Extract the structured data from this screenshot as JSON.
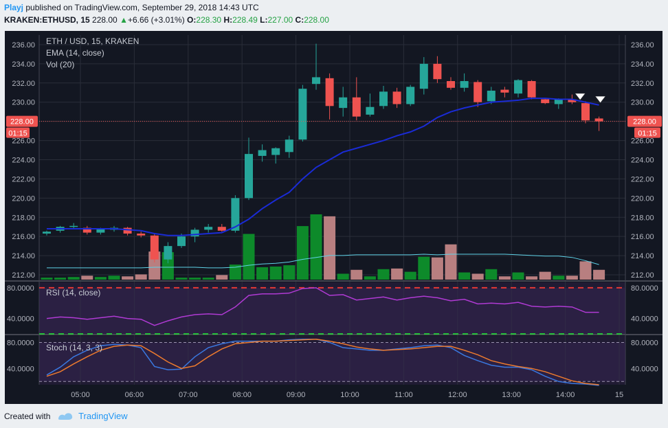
{
  "header": {
    "author": "Playj",
    "published": "published on TradingView.com, September 29, 2018 14:43 UTC",
    "symbol": "KRAKEN:ETHUSD, 15",
    "price": "228.00",
    "change": "+6.66 (+3.01%)",
    "o_label": "O:",
    "o_value": "228.30",
    "h_label": "H:",
    "h_value": "228.49",
    "l_label": "L:",
    "l_value": "227.00",
    "c_label": "C:",
    "c_value": "228.00"
  },
  "footer": {
    "created_with": "Created with",
    "brand": "TradingView"
  },
  "colors": {
    "background": "#131722",
    "up": "#26a69a",
    "down": "#ef5350",
    "ema": "#1a2bd6",
    "vol_up": "#0d8a2a",
    "vol_down": "#b87f80",
    "vol_ma": "#5fd3e8",
    "rsi": "#b03ad4",
    "rsi_upper": "#e53935",
    "rsi_lower": "#27c13a",
    "stoch_k": "#3a78e0",
    "stoch_d": "#ec7a2e",
    "pane_fill": "#2b1f42"
  },
  "chart_data": [
    {
      "type": "candlestick",
      "title": "ETH / USD, 15, KRAKEN",
      "indicators": [
        "EMA (14, close)",
        "Vol (20)"
      ],
      "ylim": [
        211.5,
        237.0
      ],
      "yticks": [
        "236.00",
        "234.00",
        "232.00",
        "230.00",
        "228.00",
        "226.00",
        "224.00",
        "222.00",
        "220.00",
        "218.00",
        "216.00",
        "214.00",
        "212.00"
      ],
      "x_ticks": [
        "05:00",
        "06:00",
        "07:00",
        "08:00",
        "09:00",
        "10:00",
        "11:00",
        "12:00",
        "13:00",
        "14:00",
        "15"
      ],
      "x_tick_index": [
        3,
        7,
        11,
        15,
        19,
        23,
        27,
        31,
        35,
        39,
        43
      ],
      "last_price_label": "228.00",
      "countdown_label": "01:15",
      "candles": [
        {
          "o": 216.3,
          "h": 216.6,
          "l": 216.1,
          "c": 216.5
        },
        {
          "o": 216.6,
          "h": 217.1,
          "l": 216.4,
          "c": 217.0
        },
        {
          "o": 217.0,
          "h": 217.4,
          "l": 216.8,
          "c": 217.1
        },
        {
          "o": 216.9,
          "h": 217.1,
          "l": 216.2,
          "c": 216.4
        },
        {
          "o": 216.4,
          "h": 216.9,
          "l": 216.2,
          "c": 216.8
        },
        {
          "o": 216.7,
          "h": 217.1,
          "l": 216.5,
          "c": 216.9
        },
        {
          "o": 216.9,
          "h": 217.0,
          "l": 216.1,
          "c": 216.3
        },
        {
          "o": 216.3,
          "h": 216.5,
          "l": 215.9,
          "c": 216.1
        },
        {
          "o": 216.1,
          "h": 216.3,
          "l": 213.3,
          "c": 213.6
        },
        {
          "o": 213.6,
          "h": 215.4,
          "l": 213.2,
          "c": 215.0
        },
        {
          "o": 215.0,
          "h": 216.3,
          "l": 214.8,
          "c": 216.0
        },
        {
          "o": 216.0,
          "h": 216.9,
          "l": 215.4,
          "c": 216.7
        },
        {
          "o": 216.7,
          "h": 217.3,
          "l": 216.4,
          "c": 217.0
        },
        {
          "o": 217.0,
          "h": 217.3,
          "l": 216.5,
          "c": 216.6
        },
        {
          "o": 216.6,
          "h": 220.3,
          "l": 216.4,
          "c": 220.0
        },
        {
          "o": 220.0,
          "h": 226.3,
          "l": 219.8,
          "c": 224.6
        },
        {
          "o": 224.4,
          "h": 225.6,
          "l": 223.8,
          "c": 225.0
        },
        {
          "o": 224.5,
          "h": 225.3,
          "l": 223.6,
          "c": 225.2
        },
        {
          "o": 224.8,
          "h": 226.5,
          "l": 224.2,
          "c": 226.1
        },
        {
          "o": 226.1,
          "h": 231.8,
          "l": 225.9,
          "c": 231.4
        },
        {
          "o": 231.9,
          "h": 236.1,
          "l": 231.3,
          "c": 232.6
        },
        {
          "o": 232.5,
          "h": 233.0,
          "l": 228.2,
          "c": 229.6
        },
        {
          "o": 229.4,
          "h": 231.6,
          "l": 228.5,
          "c": 230.5
        },
        {
          "o": 230.5,
          "h": 232.6,
          "l": 228.1,
          "c": 228.5
        },
        {
          "o": 228.7,
          "h": 230.9,
          "l": 228.5,
          "c": 229.5
        },
        {
          "o": 229.6,
          "h": 231.7,
          "l": 229.3,
          "c": 231.1
        },
        {
          "o": 231.1,
          "h": 231.5,
          "l": 229.4,
          "c": 229.8
        },
        {
          "o": 229.8,
          "h": 231.8,
          "l": 229.6,
          "c": 231.6
        },
        {
          "o": 231.4,
          "h": 234.7,
          "l": 230.8,
          "c": 234.0
        },
        {
          "o": 234.0,
          "h": 234.8,
          "l": 232.0,
          "c": 232.4
        },
        {
          "o": 232.2,
          "h": 232.6,
          "l": 231.3,
          "c": 231.5
        },
        {
          "o": 231.5,
          "h": 233.0,
          "l": 231.1,
          "c": 232.2
        },
        {
          "o": 232.1,
          "h": 232.3,
          "l": 229.5,
          "c": 230.0
        },
        {
          "o": 230.1,
          "h": 231.6,
          "l": 229.8,
          "c": 231.2
        },
        {
          "o": 231.3,
          "h": 231.6,
          "l": 230.5,
          "c": 231.0
        },
        {
          "o": 230.9,
          "h": 232.4,
          "l": 230.5,
          "c": 232.3
        },
        {
          "o": 232.2,
          "h": 232.3,
          "l": 230.3,
          "c": 230.5
        },
        {
          "o": 230.3,
          "h": 230.4,
          "l": 229.8,
          "c": 229.9
        },
        {
          "o": 229.8,
          "h": 230.4,
          "l": 229.3,
          "c": 230.3
        },
        {
          "o": 230.3,
          "h": 230.8,
          "l": 229.8,
          "c": 230.0
        },
        {
          "o": 229.9,
          "h": 230.1,
          "l": 227.8,
          "c": 228.1
        },
        {
          "o": 228.3,
          "h": 228.5,
          "l": 227.0,
          "c": 228.0
        }
      ],
      "ema": [
        216.8,
        216.8,
        216.8,
        216.8,
        216.8,
        216.8,
        216.7,
        216.6,
        216.3,
        216.1,
        216.1,
        216.2,
        216.3,
        216.4,
        217.0,
        217.8,
        218.9,
        219.8,
        220.6,
        222.0,
        223.2,
        224.0,
        224.8,
        225.2,
        225.6,
        226.0,
        226.5,
        226.9,
        227.5,
        228.4,
        229.0,
        229.4,
        229.7,
        230.0,
        230.1,
        230.2,
        230.4,
        230.4,
        230.3,
        230.3,
        230.0,
        229.7
      ],
      "volume": [
        0.3,
        0.3,
        0.4,
        0.6,
        0.4,
        0.6,
        0.5,
        0.8,
        4.3,
        4.2,
        0.3,
        0.3,
        0.3,
        0.7,
        2.3,
        7.0,
        1.9,
        2.0,
        2.2,
        8.2,
        10.0,
        9.7,
        0.9,
        1.5,
        0.5,
        1.6,
        1.7,
        1.2,
        3.5,
        3.4,
        5.4,
        1.1,
        0.9,
        1.6,
        0.5,
        1.1,
        0.5,
        1.2,
        0.6,
        0.6,
        2.8,
        1.5
      ],
      "volume_ma": [
        1.8,
        1.8,
        1.8,
        1.8,
        1.8,
        1.8,
        1.8,
        1.8,
        1.9,
        1.9,
        1.9,
        1.9,
        1.8,
        1.8,
        1.9,
        2.2,
        2.4,
        2.5,
        2.7,
        3.1,
        3.4,
        3.7,
        3.7,
        3.8,
        3.8,
        3.8,
        3.8,
        3.8,
        3.9,
        3.8,
        3.9,
        3.9,
        3.9,
        3.9,
        3.9,
        3.8,
        3.7,
        3.6,
        3.6,
        3.4,
        2.9,
        2.3
      ]
    },
    {
      "type": "line",
      "title": "RSI (14, close)",
      "ylim": [
        20,
        87
      ],
      "yticks": [
        "80.0000",
        "40.0000"
      ],
      "upper_band": 80,
      "lower_band": 20,
      "series": [
        {
          "values": [
            40,
            42,
            41,
            39,
            41,
            43,
            40,
            39,
            31,
            37,
            42,
            45,
            46,
            45,
            55,
            70,
            72,
            72,
            73,
            79,
            80,
            70,
            71,
            64,
            66,
            68,
            64,
            67,
            69,
            67,
            63,
            65,
            59,
            60,
            59,
            61,
            56,
            55,
            56,
            55,
            48,
            48
          ]
        }
      ]
    },
    {
      "type": "line",
      "title": "Stoch (14, 3, 3)",
      "ylim": [
        15,
        90
      ],
      "yticks": [
        "80.0000",
        "40.0000"
      ],
      "upper_band": 80,
      "lower_band": 20,
      "series": [
        {
          "values": [
            30,
            42,
            58,
            68,
            75,
            77,
            76,
            72,
            43,
            38,
            39,
            58,
            72,
            78,
            82,
            82,
            82,
            82,
            84,
            85,
            85,
            80,
            72,
            70,
            68,
            68,
            70,
            72,
            75,
            76,
            72,
            60,
            52,
            45,
            42,
            42,
            38,
            28,
            20,
            17,
            16,
            14
          ]
        },
        {
          "values": [
            28,
            35,
            47,
            58,
            68,
            74,
            76,
            75,
            63,
            50,
            40,
            44,
            58,
            70,
            78,
            80,
            82,
            82,
            83,
            84,
            85,
            82,
            78,
            73,
            70,
            68,
            69,
            70,
            72,
            74,
            74,
            68,
            61,
            52,
            47,
            43,
            40,
            35,
            28,
            21,
            17,
            15
          ]
        }
      ]
    }
  ]
}
